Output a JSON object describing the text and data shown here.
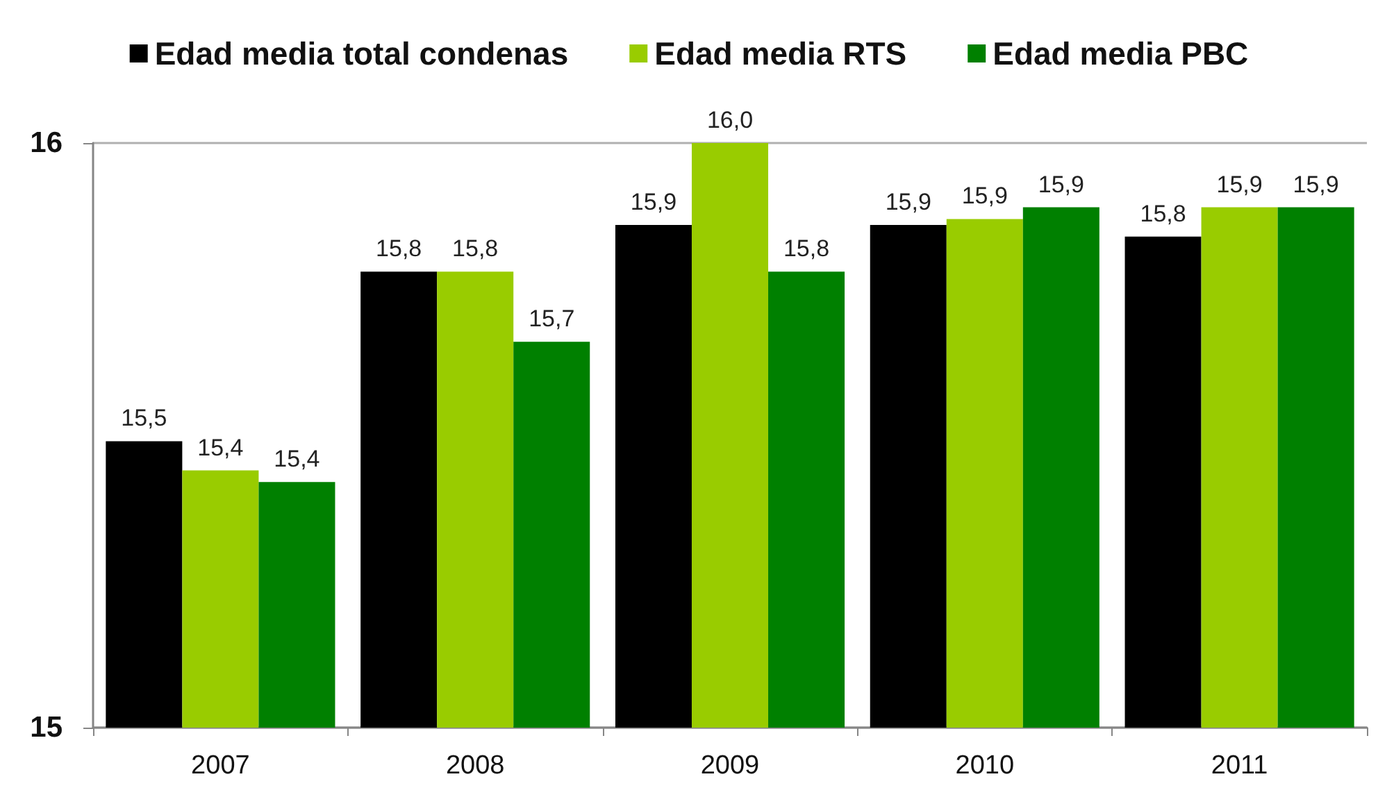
{
  "chart_data": {
    "type": "bar",
    "categories": [
      "2007",
      "2008",
      "2009",
      "2010",
      "2011"
    ],
    "series": [
      {
        "name": "Edad media total condenas",
        "color": "#000000",
        "values": [
          15.49,
          15.78,
          15.86,
          15.86,
          15.84
        ],
        "value_labels": [
          "15,5",
          "15,8",
          "15,9",
          "15,9",
          "15,8"
        ]
      },
      {
        "name": "Edad media RTS",
        "color": "#99cc00",
        "values": [
          15.44,
          15.78,
          16.0,
          15.87,
          15.89
        ],
        "value_labels": [
          "15,4",
          "15,8",
          "16,0",
          "15,9",
          "15,9"
        ]
      },
      {
        "name": "Edad media PBC",
        "color": "#008000",
        "values": [
          15.42,
          15.66,
          15.78,
          15.89,
          15.89
        ],
        "value_labels": [
          "15,4",
          "15,7",
          "15,8",
          "15,9",
          "15,9"
        ]
      }
    ],
    "ylim": [
      15,
      16
    ],
    "yticks": [
      15,
      16
    ],
    "grid": "y",
    "legend": "top"
  }
}
